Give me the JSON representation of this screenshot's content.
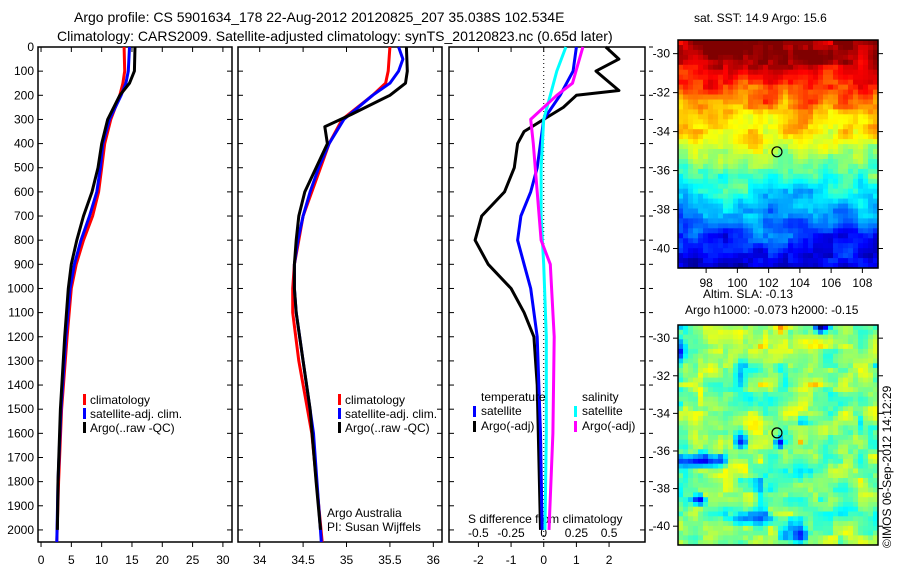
{
  "title_line1": "Argo profile: CS 5901634_178 22-Aug-2012 20120825_207 35.038S 102.534E",
  "title_line2": "Climatology: CARS2009. Satellite-adjusted climatology: synTS_20120823.nc (0.65d later)",
  "map1_title": "sat. SST: 14.9 Argo: 15.6",
  "map2_title1": "Altim. SLA: -0.13",
  "map2_title2": "Argo h1000: -0.073 h2000: -0.15",
  "credit": "©IMOS 06-Sep-2012 14:12:29",
  "colors": {
    "climatology": "#ff0000",
    "satellite": "#0000ff",
    "argo": "#000000",
    "sal_sat": "#00ffff",
    "sal_argo": "#ff00ff"
  },
  "chart_data": [
    {
      "type": "line",
      "name": "temperature",
      "ylabel": "depth",
      "ylim": [
        2050,
        0
      ],
      "xlim": [
        -0.5,
        31.5
      ],
      "xticks": [
        0,
        5,
        10,
        15,
        20,
        25,
        30
      ],
      "yticks": [
        0,
        100,
        200,
        300,
        400,
        500,
        600,
        700,
        800,
        900,
        1000,
        1100,
        1200,
        1300,
        1400,
        1500,
        1600,
        1700,
        1800,
        1900,
        2000
      ],
      "legend": [
        "climatology",
        "satellite-adj. clim.",
        "Argo(..raw -QC)"
      ],
      "series": [
        {
          "name": "climatology",
          "color": "#ff0000",
          "points": [
            [
              13.7,
              0
            ],
            [
              13.8,
              100
            ],
            [
              13.5,
              150
            ],
            [
              13,
              200
            ],
            [
              11.5,
              300
            ],
            [
              10.5,
              400
            ],
            [
              10,
              500
            ],
            [
              9.5,
              600
            ],
            [
              8.5,
              700
            ],
            [
              7,
              800
            ],
            [
              5.8,
              900
            ],
            [
              5,
              1000
            ],
            [
              4.3,
              1200
            ],
            [
              3.4,
              1500
            ],
            [
              2.9,
              1800
            ],
            [
              2.6,
              2050
            ]
          ]
        },
        {
          "name": "satellite-adj. clim.",
          "color": "#0000ff",
          "points": [
            [
              14.6,
              0
            ],
            [
              14.4,
              100
            ],
            [
              14,
              150
            ],
            [
              13.2,
              200
            ],
            [
              11.3,
              300
            ],
            [
              10.2,
              400
            ],
            [
              9.8,
              500
            ],
            [
              9.2,
              600
            ],
            [
              8,
              700
            ],
            [
              6.6,
              800
            ],
            [
              5.5,
              900
            ],
            [
              4.8,
              1000
            ],
            [
              4.1,
              1200
            ],
            [
              3.3,
              1500
            ],
            [
              2.8,
              1800
            ],
            [
              2.6,
              2050
            ]
          ]
        },
        {
          "name": "Argo(..raw -QC)",
          "color": "#000000",
          "points": [
            [
              15.5,
              0
            ],
            [
              15.4,
              100
            ],
            [
              14.6,
              150
            ],
            [
              13,
              200
            ],
            [
              11,
              300
            ],
            [
              10,
              400
            ],
            [
              9.4,
              500
            ],
            [
              8.4,
              600
            ],
            [
              7,
              700
            ],
            [
              5.9,
              800
            ],
            [
              5,
              900
            ],
            [
              4.5,
              1000
            ],
            [
              3.9,
              1200
            ],
            [
              3.2,
              1500
            ],
            [
              2.8,
              1800
            ],
            [
              2.7,
              2000
            ]
          ]
        }
      ]
    },
    {
      "type": "line",
      "name": "salinity",
      "ylim": [
        2050,
        0
      ],
      "xlim": [
        33.75,
        36.1
      ],
      "xticks": [
        34,
        34.5,
        35,
        35.5,
        36
      ],
      "legend": [
        "climatology",
        "satellite-adj. clim.",
        "Argo(..raw -QC)"
      ],
      "annotation": [
        "Argo Australia",
        "PI: Susan Wijffels"
      ],
      "series": [
        {
          "name": "climatology",
          "color": "#ff0000",
          "points": [
            [
              35.5,
              0
            ],
            [
              35.48,
              100
            ],
            [
              35.45,
              150
            ],
            [
              35.3,
              200
            ],
            [
              34.95,
              300
            ],
            [
              34.8,
              400
            ],
            [
              34.7,
              500
            ],
            [
              34.6,
              600
            ],
            [
              34.5,
              700
            ],
            [
              34.45,
              800
            ],
            [
              34.4,
              900
            ],
            [
              34.38,
              1000
            ],
            [
              34.38,
              1100
            ],
            [
              34.45,
              1300
            ],
            [
              34.6,
              1600
            ],
            [
              34.72,
              2050
            ]
          ]
        },
        {
          "name": "satellite-adj. clim.",
          "color": "#0000ff",
          "points": [
            [
              35.6,
              0
            ],
            [
              35.65,
              50
            ],
            [
              35.6,
              100
            ],
            [
              35.5,
              150
            ],
            [
              35.3,
              200
            ],
            [
              34.97,
              300
            ],
            [
              34.8,
              400
            ],
            [
              34.68,
              500
            ],
            [
              34.58,
              600
            ],
            [
              34.5,
              700
            ],
            [
              34.44,
              800
            ],
            [
              34.4,
              900
            ],
            [
              34.4,
              1000
            ],
            [
              34.42,
              1100
            ],
            [
              34.5,
              1300
            ],
            [
              34.62,
              1600
            ],
            [
              34.71,
              2050
            ]
          ]
        },
        {
          "name": "Argo(..raw -QC)",
          "color": "#000000",
          "points": [
            [
              35.69,
              0
            ],
            [
              35.7,
              100
            ],
            [
              35.68,
              150
            ],
            [
              35.5,
              200
            ],
            [
              35.05,
              280
            ],
            [
              34.75,
              330
            ],
            [
              34.78,
              400
            ],
            [
              34.65,
              500
            ],
            [
              34.52,
              600
            ],
            [
              34.45,
              700
            ],
            [
              34.42,
              800
            ],
            [
              34.4,
              900
            ],
            [
              34.4,
              1000
            ],
            [
              34.42,
              1100
            ],
            [
              34.5,
              1300
            ],
            [
              34.58,
              1500
            ],
            [
              34.65,
              1800
            ],
            [
              34.7,
              2000
            ]
          ]
        }
      ]
    },
    {
      "type": "line",
      "name": "difference",
      "ylim": [
        2050,
        0
      ],
      "xlim": [
        -2.9,
        3.1
      ],
      "xticks": [
        -2,
        -1,
        0,
        1,
        2
      ],
      "s_xticks": [
        "-0.5",
        "-0.25",
        "0",
        "0.25",
        "0.5"
      ],
      "s_xlabel": "S difference from climatology",
      "legend_temp": {
        "title": "temperature",
        "items": [
          "satellite",
          "Argo(-adj)"
        ]
      },
      "legend_sal": {
        "title": "salinity",
        "items": [
          "satellite",
          "Argo(-adj)"
        ]
      },
      "series": [
        {
          "name": "T Argo(-adj)",
          "color": "#000000",
          "points": [
            [
              1.9,
              0
            ],
            [
              2.3,
              50
            ],
            [
              1.6,
              100
            ],
            [
              2.3,
              180
            ],
            [
              1,
              200
            ],
            [
              0.6,
              250
            ],
            [
              0,
              300
            ],
            [
              -0.6,
              350
            ],
            [
              -0.8,
              400
            ],
            [
              -0.9,
              500
            ],
            [
              -1.2,
              600
            ],
            [
              -1.9,
              700
            ],
            [
              -2.1,
              800
            ],
            [
              -1.7,
              900
            ],
            [
              -1,
              1000
            ],
            [
              -0.6,
              1100
            ],
            [
              -0.3,
              1200
            ],
            [
              -0.2,
              1400
            ],
            [
              -0.1,
              2000
            ]
          ]
        },
        {
          "name": "T satellite",
          "color": "#0000ff",
          "points": [
            [
              1,
              0
            ],
            [
              0.9,
              100
            ],
            [
              0.5,
              200
            ],
            [
              0,
              300
            ],
            [
              -0.2,
              500
            ],
            [
              -0.4,
              600
            ],
            [
              -0.7,
              700
            ],
            [
              -0.8,
              800
            ],
            [
              -0.6,
              900
            ],
            [
              -0.4,
              1000
            ],
            [
              -0.2,
              1200
            ],
            [
              -0.1,
              1600
            ],
            [
              -0.05,
              2000
            ]
          ]
        },
        {
          "name": "S satellite",
          "color": "#00ffff",
          "points": [
            [
              0.17,
              0
            ],
            [
              0.1,
              100
            ],
            [
              0.05,
              200
            ],
            [
              0,
              300
            ],
            [
              -0.02,
              500
            ],
            [
              -0.02,
              700
            ],
            [
              0,
              900
            ],
            [
              0.02,
              1200
            ],
            [
              0.02,
              1600
            ],
            [
              0.01,
              2000
            ]
          ],
          "scale": 4
        },
        {
          "name": "S Argo(-adj)",
          "color": "#ff00ff",
          "points": [
            [
              0.3,
              0
            ],
            [
              0.22,
              150
            ],
            [
              0.1,
              200
            ],
            [
              -0.1,
              300
            ],
            [
              -0.08,
              400
            ],
            [
              -0.05,
              600
            ],
            [
              -0.02,
              800
            ],
            [
              0.05,
              900
            ],
            [
              0.08,
              1200
            ],
            [
              0.07,
              1600
            ],
            [
              0.04,
              2000
            ]
          ],
          "scale": 4
        }
      ]
    },
    {
      "type": "heatmap",
      "name": "sst_map",
      "xticks": [
        98,
        100,
        102,
        104,
        106,
        108
      ],
      "yticks": [
        -30,
        -32,
        -34,
        -36,
        -38,
        -40
      ],
      "xlim": [
        96.2,
        109
      ],
      "ylim": [
        -41,
        -29.3
      ],
      "marker": [
        102.534,
        -35.038
      ]
    },
    {
      "type": "heatmap",
      "name": "sla_map",
      "yticks": [
        -30,
        -32,
        -34,
        -36,
        -38,
        -40
      ],
      "xlim": [
        96.2,
        109
      ],
      "ylim": [
        -41,
        -29.3
      ],
      "marker": [
        102.534,
        -35.038
      ]
    }
  ]
}
